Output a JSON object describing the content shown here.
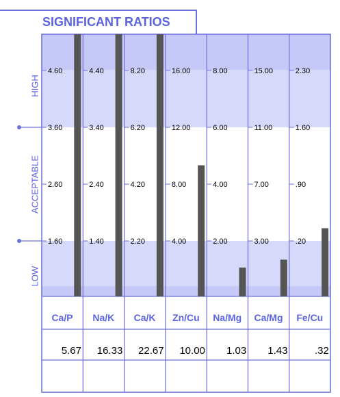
{
  "title": "SIGNIFICANT RATIOS",
  "zones": {
    "high": "HIGH",
    "acceptable": "ACCEPTABLE",
    "low": "LOW"
  },
  "colors": {
    "accent": "#5b63e0",
    "grid": "#6b6fd9",
    "band": "#d7d9fb",
    "band_dark": "#c6c9f7",
    "bar": "#555555"
  },
  "chart_data": {
    "type": "bar",
    "title": "SIGNIFICANT RATIOS",
    "columns": [
      {
        "name": "Ca/P",
        "value_label": "5.67",
        "ticks": [
          "4.60",
          "3.60",
          "2.60",
          "1.60"
        ],
        "tick_values": [
          4.6,
          3.6,
          2.6,
          1.6
        ],
        "bar_fraction": 1.0
      },
      {
        "name": "Na/K",
        "value_label": "16.33",
        "ticks": [
          "4.40",
          "3.40",
          "2.40",
          "1.40"
        ],
        "tick_values": [
          4.4,
          3.4,
          2.4,
          1.4
        ],
        "bar_fraction": 1.0
      },
      {
        "name": "Ca/K",
        "value_label": "22.67",
        "ticks": [
          "8.20",
          "6.20",
          "4.20",
          "2.20"
        ],
        "tick_values": [
          8.2,
          6.2,
          4.2,
          2.2
        ],
        "bar_fraction": 1.0
      },
      {
        "name": "Zn/Cu",
        "value_label": "10.00",
        "ticks": [
          "16.00",
          "12.00",
          "8.00",
          "4.00"
        ],
        "tick_values": [
          16,
          12,
          8,
          4
        ],
        "bar_fraction": 0.5
      },
      {
        "name": "Na/Mg",
        "value_label": "1.03",
        "ticks": [
          "8.00",
          "6.00",
          "4.00",
          "2.00"
        ],
        "tick_values": [
          8,
          6,
          4,
          2
        ],
        "bar_fraction": 0.11
      },
      {
        "name": "Ca/Mg",
        "value_label": "1.43",
        "ticks": [
          "15.00",
          "11.00",
          "7.00",
          "3.00"
        ],
        "tick_values": [
          15,
          11,
          7,
          3
        ],
        "bar_fraction": 0.14
      },
      {
        "name": "Fe/Cu",
        "value_label": ".32",
        "ticks": [
          "2.30",
          "1.60",
          ".90",
          ".20"
        ],
        "tick_values": [
          2.3,
          1.6,
          0.9,
          0.2
        ],
        "bar_fraction": 0.26
      }
    ]
  }
}
